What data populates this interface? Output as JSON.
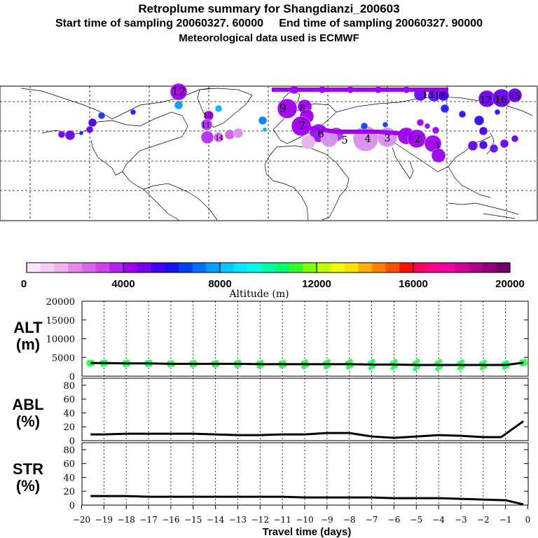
{
  "title": "Retroplume summary for Shangdianzi_200603",
  "subtitle_sampling": "Start time of sampling 20060327. 60000     End time of sampling 20060327. 90000",
  "subtitle_met": "Meteorological data used is ECMWF",
  "colorbar": {
    "label": "Altitude (m)",
    "ticks": [
      "0",
      "4000",
      "8000",
      "12000",
      "16000",
      "20000"
    ],
    "colors": [
      "#fbe6fb",
      "#f7ccf7",
      "#eeb0f0",
      "#e48aec",
      "#d866ea",
      "#cc44ea",
      "#b822ee",
      "#a000f0",
      "#7a00f0",
      "#4800f0",
      "#1a10f0",
      "#0040f4",
      "#0070f8",
      "#00a0fc",
      "#00c8ff",
      "#00e8ff",
      "#00ffe0",
      "#00ffa8",
      "#00ff70",
      "#30ff30",
      "#80ff00",
      "#c0ff00",
      "#f0ff00",
      "#ffe000",
      "#ffb000",
      "#ff8000",
      "#ff5000",
      "#ff1000",
      "#ff0060",
      "#ff0090",
      "#f000a0",
      "#d00098",
      "#b00088",
      "#900078",
      "#700068"
    ]
  },
  "map": {
    "labels": [
      {
        "text": "12",
        "color": "#a000f0"
      },
      {
        "text": "9",
        "color": "#a000f0"
      },
      {
        "text": "8",
        "color": "#a000f0"
      },
      {
        "text": "7",
        "color": "#a000f0"
      },
      {
        "text": "6",
        "color": "#9010f0"
      },
      {
        "text": "5",
        "color": "#e8a8f0"
      },
      {
        "text": "4",
        "color": "#d890ee"
      },
      {
        "text": "3",
        "color": "#d890ee"
      },
      {
        "text": "2",
        "color": "#a000f0"
      },
      {
        "text": "1",
        "color": "#a000f0"
      },
      {
        "text": "13",
        "color": "#6a00f0"
      },
      {
        "text": "17",
        "color": "#6a00f0"
      },
      {
        "text": "16",
        "color": "#6a00f0"
      },
      {
        "text": "15",
        "color": "#6a00f0"
      },
      {
        "text": "10",
        "color": "#b030ee"
      },
      {
        "text": "11",
        "color": "#b030ee"
      },
      {
        "text": "14",
        "color": "#cc60ec"
      },
      {
        "text": "18",
        "color": "#4800f0"
      }
    ]
  },
  "chart_data": [
    {
      "type": "line",
      "name": "ALT",
      "ylabel": "ALT\n(m)",
      "ylabel_lines": [
        "ALT",
        "(m)"
      ],
      "ylim": [
        0,
        20000
      ],
      "yticks": [
        "20000",
        "15000",
        "10000",
        "5000",
        "0"
      ],
      "x": [
        -19.6,
        -19,
        -18,
        -17,
        -16,
        -15,
        -14,
        -13,
        -12,
        -11,
        -10,
        -9,
        -8,
        -7,
        -6,
        -5,
        -4,
        -3,
        -2,
        -1,
        -0.2
      ],
      "values": [
        3500,
        3500,
        3400,
        3400,
        3300,
        3300,
        3300,
        3300,
        3200,
        3200,
        3200,
        3200,
        3200,
        3100,
        3100,
        3000,
        3000,
        3000,
        3000,
        3000,
        3600
      ],
      "scatter_color": "#30ff60",
      "scatter_spread": [
        800,
        900,
        1000,
        1000,
        900,
        1000,
        1000,
        1200,
        1300,
        1300,
        1500,
        1700,
        1800,
        2000,
        2000,
        2200,
        2200,
        2000,
        1800,
        1500,
        1000
      ]
    },
    {
      "type": "line",
      "name": "ABL",
      "ylabel_lines": [
        "ABL",
        "(%)"
      ],
      "ylim": [
        0,
        90
      ],
      "yticks": [
        "80",
        "60",
        "40",
        "20",
        "0"
      ],
      "x": [
        -19.6,
        -19,
        -18,
        -17,
        -16,
        -15,
        -14,
        -13,
        -12,
        -11,
        -10,
        -9,
        -8,
        -7,
        -6,
        -5,
        -4,
        -3,
        -2,
        -1.2,
        -0.2
      ],
      "values": [
        9,
        9,
        10,
        10,
        10,
        10,
        9,
        8,
        8,
        9,
        9,
        11,
        11,
        6,
        4,
        6,
        8,
        7,
        5,
        5,
        28
      ]
    },
    {
      "type": "line",
      "name": "STR",
      "ylabel_lines": [
        "STR",
        "(%)"
      ],
      "ylim": [
        0,
        90
      ],
      "yticks": [
        "80",
        "60",
        "40",
        "20",
        "0"
      ],
      "x": [
        -19.6,
        -19,
        -18,
        -17,
        -16,
        -15,
        -14,
        -13,
        -12,
        -11,
        -10,
        -9,
        -8,
        -7,
        -6,
        -5,
        -4,
        -3,
        -2,
        -1,
        -0.2
      ],
      "values": [
        13,
        13,
        13,
        12,
        12,
        12,
        12,
        12,
        12,
        12,
        11,
        11,
        11,
        11,
        10,
        10,
        10,
        9,
        8,
        7,
        1
      ]
    }
  ],
  "xaxis": {
    "label": "Travel time (days)",
    "ticks": [
      "−20",
      "−19",
      "−18",
      "−17",
      "−16",
      "−15",
      "−14",
      "−13",
      "−12",
      "−11",
      "−10",
      "−9",
      "−8",
      "−7",
      "−6",
      "−5",
      "−4",
      "−3",
      "−2",
      "−1",
      "0"
    ]
  }
}
